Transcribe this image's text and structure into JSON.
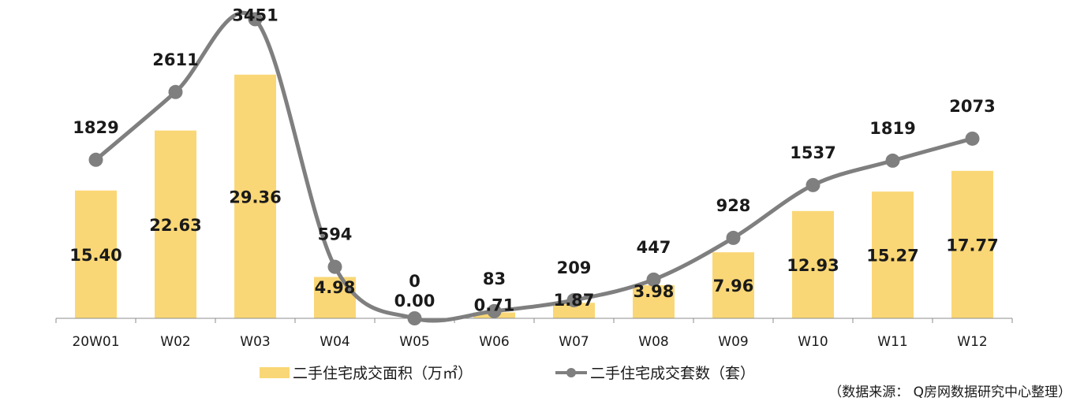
{
  "chart_data": {
    "type": "bar",
    "title": "",
    "categories": [
      "20W01",
      "W02",
      "W03",
      "W04",
      "W05",
      "W06",
      "W07",
      "W08",
      "W09",
      "W10",
      "W11",
      "W12"
    ],
    "series": [
      {
        "name": "二手住宅成交面积（万㎡）",
        "type": "bar",
        "axis": "left",
        "color": "#FAD776",
        "values": [
          15.4,
          22.63,
          29.36,
          4.98,
          0.0,
          0.71,
          1.87,
          3.98,
          7.96,
          12.93,
          15.27,
          17.77
        ],
        "labels": [
          "15.40",
          "22.63",
          "29.36",
          "4.98",
          "0.00",
          "0.71",
          "1.87",
          "3.98",
          "7.96",
          "12.93",
          "15.27",
          "17.77"
        ]
      },
      {
        "name": "二手住宅成交套数（套）",
        "type": "line",
        "smooth": true,
        "axis": "right",
        "color": "#7F7F7F",
        "values": [
          1829,
          2611,
          3451,
          594,
          0,
          83,
          209,
          447,
          928,
          1537,
          1819,
          2073
        ],
        "labels": [
          "1829",
          "2611",
          "3451",
          "594",
          "0",
          "83",
          "209",
          "447",
          "928",
          "1537",
          "1819",
          "2073"
        ]
      }
    ],
    "left_axis_range": [
      0,
      30
    ],
    "right_axis_range": [
      0,
      3700
    ],
    "axes_visible": false,
    "grid": false,
    "legend_position": "bottom-center",
    "source_note": "（数据来源： Q房网数据研究中心整理）"
  }
}
